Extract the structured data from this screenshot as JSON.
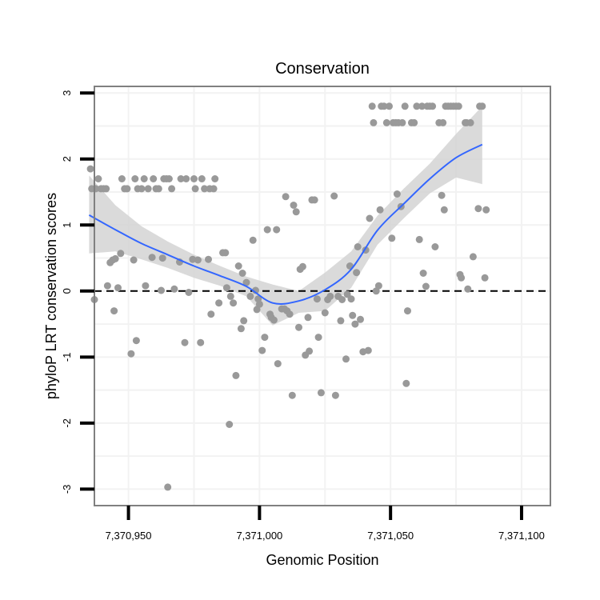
{
  "chart_data": {
    "type": "scatter",
    "title": "Conservation",
    "xlabel": "Genomic Position",
    "ylabel": "phyloP LRT conservation scores",
    "xlim": [
      7370937,
      7371111
    ],
    "ylim": [
      -3.25,
      3.1
    ],
    "x_ticks": [
      7370950,
      7371000,
      7371050,
      7371100
    ],
    "x_tick_labels": [
      "7,370,950",
      "7,371,000",
      "7,371,050",
      "7,371,100"
    ],
    "y_ticks": [
      -3,
      -2,
      -1,
      0,
      1,
      2,
      3
    ],
    "y_tick_labels": [
      "-3",
      "-2",
      "-1",
      "0",
      "1",
      "2",
      "3"
    ],
    "reference_line": {
      "y": 0,
      "style": "dashed"
    },
    "colors": {
      "points": "#999999",
      "smooth": "#3366ff",
      "band": "#d3d3d3",
      "grid": "#f2f2f2",
      "border": "#808080",
      "refline": "#000000"
    },
    "points": [
      [
        7370935.5,
        1.85
      ],
      [
        7370936,
        1.55
      ],
      [
        7370937,
        -0.13
      ],
      [
        7370937.5,
        1.55
      ],
      [
        7370938.5,
        1.7
      ],
      [
        7370939.5,
        1.55
      ],
      [
        7370940.5,
        1.55
      ],
      [
        7370941.5,
        1.55
      ],
      [
        7370942,
        0.08
      ],
      [
        7370943,
        0.43
      ],
      [
        7370944,
        0.47
      ],
      [
        7370944.5,
        -0.3
      ],
      [
        7370945,
        0.49
      ],
      [
        7370946,
        0.05
      ],
      [
        7370947,
        0.57
      ],
      [
        7370947.5,
        1.7
      ],
      [
        7370948.5,
        1.55
      ],
      [
        7370949.5,
        1.55
      ],
      [
        7370951,
        -0.95
      ],
      [
        7370952,
        0.47
      ],
      [
        7370952.5,
        1.7
      ],
      [
        7370953,
        -0.75
      ],
      [
        7370953.5,
        1.55
      ],
      [
        7370955,
        1.55
      ],
      [
        7370956,
        1.7
      ],
      [
        7370956.5,
        0.08
      ],
      [
        7370957.5,
        1.55
      ],
      [
        7370959,
        0.51
      ],
      [
        7370959.5,
        1.7
      ],
      [
        7370960.5,
        1.55
      ],
      [
        7370961.5,
        1.55
      ],
      [
        7370962.5,
        0.01
      ],
      [
        7370963,
        0.5
      ],
      [
        7370963.5,
        1.7
      ],
      [
        7370964.5,
        1.7
      ],
      [
        7370965,
        -2.97
      ],
      [
        7370965.5,
        1.7
      ],
      [
        7370966.5,
        1.55
      ],
      [
        7370967.5,
        0.03
      ],
      [
        7370969.5,
        0.44
      ],
      [
        7370970,
        1.7
      ],
      [
        7370971.5,
        -0.78
      ],
      [
        7370972,
        1.7
      ],
      [
        7370973,
        -0.02
      ],
      [
        7370974.5,
        0.48
      ],
      [
        7370975,
        1.7
      ],
      [
        7370975.5,
        1.55
      ],
      [
        7370976.5,
        0.47
      ],
      [
        7370977.5,
        -0.78
      ],
      [
        7370978,
        1.7
      ],
      [
        7370979,
        1.55
      ],
      [
        7370980.5,
        0.48
      ],
      [
        7370981,
        1.55
      ],
      [
        7370981.5,
        -0.35
      ],
      [
        7370982.5,
        1.55
      ],
      [
        7370983,
        1.7
      ],
      [
        7370984.5,
        -0.18
      ],
      [
        7370986,
        0.58
      ],
      [
        7370987,
        0.58
      ],
      [
        7370987.5,
        0.05
      ],
      [
        7370988.5,
        -2.02
      ],
      [
        7370989,
        -0.08
      ],
      [
        7370990,
        -0.18
      ],
      [
        7370991,
        -1.28
      ],
      [
        7370992,
        0.38
      ],
      [
        7370993,
        -0.57
      ],
      [
        7370993.5,
        0.27
      ],
      [
        7370994,
        -0.45
      ],
      [
        7370995,
        0.13
      ],
      [
        7370996.5,
        -0.08
      ],
      [
        7370997.5,
        0.77
      ],
      [
        7370998.5,
        0.01
      ],
      [
        7370999,
        -0.28
      ],
      [
        7370999.5,
        -0.12
      ],
      [
        7371000,
        -0.2
      ],
      [
        7371001,
        -0.9
      ],
      [
        7371002,
        -0.7
      ],
      [
        7371003,
        0.93
      ],
      [
        7371004,
        -0.35
      ],
      [
        7371004.5,
        -0.4
      ],
      [
        7371005.5,
        -0.44
      ],
      [
        7371006.5,
        0.93
      ],
      [
        7371007,
        -1.1
      ],
      [
        7371008.5,
        -0.27
      ],
      [
        7371009.5,
        -0.27
      ],
      [
        7371010,
        1.43
      ],
      [
        7371010.5,
        -0.3
      ],
      [
        7371011.5,
        -0.35
      ],
      [
        7371012.5,
        -1.58
      ],
      [
        7371013,
        1.3
      ],
      [
        7371014,
        1.2
      ],
      [
        7371015,
        -0.55
      ],
      [
        7371015.5,
        0.33
      ],
      [
        7371016.5,
        0.37
      ],
      [
        7371017.5,
        -0.97
      ],
      [
        7371018.5,
        -0.4
      ],
      [
        7371019,
        -0.91
      ],
      [
        7371020,
        1.38
      ],
      [
        7371021,
        1.38
      ],
      [
        7371022,
        -0.12
      ],
      [
        7371022.5,
        -0.7
      ],
      [
        7371023.5,
        -1.54
      ],
      [
        7371025,
        -0.33
      ],
      [
        7371026,
        -0.13
      ],
      [
        7371027,
        -0.08
      ],
      [
        7371028.5,
        1.44
      ],
      [
        7371029,
        -1.58
      ],
      [
        7371030,
        -0.08
      ],
      [
        7371031,
        -0.45
      ],
      [
        7371031.5,
        -0.13
      ],
      [
        7371033,
        -1.03
      ],
      [
        7371033.5,
        -0.05
      ],
      [
        7371034.5,
        0.38
      ],
      [
        7371035,
        -0.12
      ],
      [
        7371035.5,
        -0.37
      ],
      [
        7371036.5,
        -0.5
      ],
      [
        7371037,
        0.28
      ],
      [
        7371037.5,
        0.67
      ],
      [
        7371038.5,
        -0.43
      ],
      [
        7371039.5,
        -0.92
      ],
      [
        7371040.5,
        0.62
      ],
      [
        7371041.5,
        -0.9
      ],
      [
        7371042,
        1.1
      ],
      [
        7371043,
        2.8
      ],
      [
        7371043.5,
        2.55
      ],
      [
        7371044.5,
        0.0
      ],
      [
        7371045.5,
        0.08
      ],
      [
        7371046,
        1.23
      ],
      [
        7371046.5,
        2.8
      ],
      [
        7371047.5,
        2.8
      ],
      [
        7371048.5,
        2.55
      ],
      [
        7371049.5,
        2.8
      ],
      [
        7371050.5,
        0.8
      ],
      [
        7371051,
        2.55
      ],
      [
        7371052,
        2.55
      ],
      [
        7371052.5,
        1.47
      ],
      [
        7371053,
        2.55
      ],
      [
        7371054,
        1.28
      ],
      [
        7371054.5,
        2.55
      ],
      [
        7371055.5,
        2.8
      ],
      [
        7371056,
        -1.4
      ],
      [
        7371056.5,
        -0.3
      ],
      [
        7371058,
        2.55
      ],
      [
        7371059,
        2.55
      ],
      [
        7371060,
        2.8
      ],
      [
        7371061,
        0.78
      ],
      [
        7371062,
        2.8
      ],
      [
        7371062.5,
        0.27
      ],
      [
        7371063.5,
        0.07
      ],
      [
        7371064,
        2.8
      ],
      [
        7371065,
        2.8
      ],
      [
        7371066,
        2.8
      ],
      [
        7371067,
        0.67
      ],
      [
        7371068.5,
        2.55
      ],
      [
        7371069.5,
        1.45
      ],
      [
        7371070,
        2.55
      ],
      [
        7371070.5,
        1.23
      ],
      [
        7371071,
        2.8
      ],
      [
        7371072,
        2.8
      ],
      [
        7371073,
        2.8
      ],
      [
        7371074,
        2.8
      ],
      [
        7371075,
        2.8
      ],
      [
        7371076,
        2.8
      ],
      [
        7371076.5,
        0.25
      ],
      [
        7371077,
        0.2
      ],
      [
        7371078.5,
        2.55
      ],
      [
        7371079,
        2.55
      ],
      [
        7371079.5,
        0.03
      ],
      [
        7371080.5,
        2.55
      ],
      [
        7371081.5,
        0.52
      ],
      [
        7371083.5,
        1.25
      ],
      [
        7371084,
        2.8
      ],
      [
        7371085,
        2.8
      ],
      [
        7371086,
        0.2
      ],
      [
        7371086.5,
        1.23
      ]
    ],
    "smooth": {
      "x": [
        7370935,
        7370945,
        7370955,
        7370965,
        7370975,
        7370985,
        7370995,
        7371005,
        7371015,
        7371025,
        7371035,
        7371045,
        7371055,
        7371065,
        7371075,
        7371085
      ],
      "y": [
        1.15,
        0.93,
        0.72,
        0.55,
        0.38,
        0.23,
        0.07,
        -0.18,
        -0.15,
        0.02,
        0.33,
        0.92,
        1.32,
        1.7,
        2.02,
        2.22
      ],
      "lower": [
        0.57,
        0.6,
        0.48,
        0.35,
        0.2,
        0.08,
        -0.08,
        -0.52,
        -0.33,
        -0.3,
        0.05,
        0.7,
        1.1,
        1.48,
        1.72,
        1.62
      ],
      "upper": [
        1.75,
        1.3,
        0.98,
        0.75,
        0.55,
        0.38,
        0.22,
        0.1,
        0.0,
        0.28,
        0.6,
        1.14,
        1.55,
        1.93,
        2.38,
        2.8
      ]
    }
  }
}
